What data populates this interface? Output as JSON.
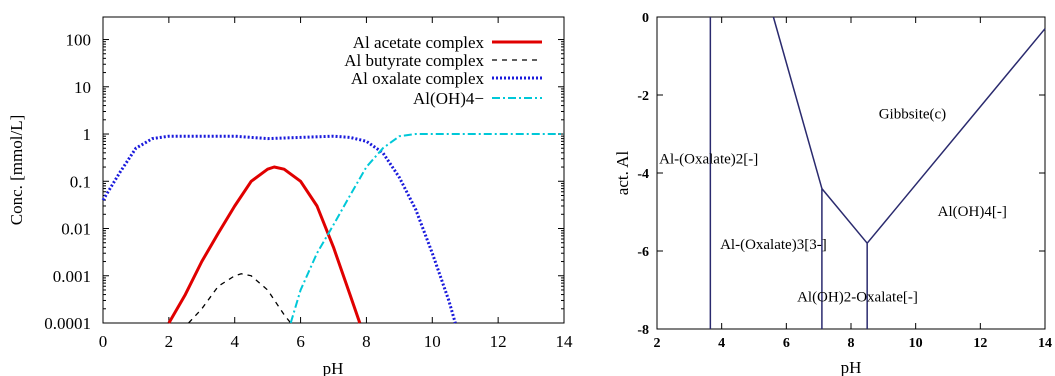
{
  "chart_data": [
    {
      "type": "line",
      "xlabel": "pH",
      "ylabel": "Conc. [mmol/L]",
      "xlim": [
        0,
        14
      ],
      "ylim": [
        0.0001,
        300
      ],
      "yscale": "log",
      "xticks": [
        "0",
        "2",
        "4",
        "6",
        "8",
        "10",
        "12",
        "14"
      ],
      "yticks": [
        "0.0001",
        "0.001",
        "0.01",
        "0.1",
        "1",
        "10",
        "100"
      ],
      "legend_position": "top-right",
      "grid": false,
      "series": [
        {
          "name": "Al acetate complex",
          "color": "#e00000",
          "style": "solid",
          "x": [
            2.0,
            2.5,
            3.0,
            3.5,
            4.0,
            4.5,
            5.0,
            5.2,
            5.5,
            6.0,
            6.5,
            7.0,
            7.5,
            7.8
          ],
          "y": [
            0.0001,
            0.0004,
            0.002,
            0.008,
            0.03,
            0.1,
            0.18,
            0.2,
            0.18,
            0.1,
            0.03,
            0.004,
            0.0004,
            0.0001
          ]
        },
        {
          "name": "Al butyrate complex",
          "color": "#000000",
          "style": "dashed",
          "x": [
            2.6,
            3.0,
            3.5,
            4.0,
            4.2,
            4.5,
            5.0,
            5.5,
            5.7
          ],
          "y": [
            0.0001,
            0.0002,
            0.0006,
            0.001,
            0.0011,
            0.001,
            0.0005,
            0.00015,
            0.0001
          ]
        },
        {
          "name": "Al oxalate complex",
          "color": "#1a1adc",
          "style": "dotted",
          "x": [
            0.0,
            0.5,
            1.0,
            1.5,
            2.0,
            3.0,
            4.0,
            5.0,
            6.0,
            7.0,
            7.5,
            8.0,
            8.5,
            9.0,
            9.5,
            10.0,
            10.5,
            10.7
          ],
          "y": [
            0.04,
            0.15,
            0.5,
            0.8,
            0.9,
            0.9,
            0.9,
            0.8,
            0.85,
            0.9,
            0.85,
            0.7,
            0.4,
            0.12,
            0.025,
            0.003,
            0.0003,
            0.0001
          ]
        },
        {
          "name": "Al(OH)4−",
          "color": "#00c8d8",
          "style": "dashdot",
          "x": [
            5.7,
            6.0,
            6.5,
            7.0,
            7.5,
            8.0,
            8.5,
            9.0,
            9.5,
            10.0,
            11.0,
            12.0,
            13.0,
            14.0
          ],
          "y": [
            0.0001,
            0.0005,
            0.003,
            0.012,
            0.05,
            0.2,
            0.5,
            0.9,
            1.0,
            1.0,
            1.0,
            1.0,
            1.0,
            1.0
          ]
        }
      ]
    },
    {
      "type": "diagram",
      "xlabel": "pH",
      "ylabel": "act. Al",
      "xlim": [
        2,
        14
      ],
      "ylim": [
        -8,
        0
      ],
      "xticks": [
        "2",
        "4",
        "6",
        "8",
        "10",
        "12",
        "14"
      ],
      "yticks": [
        "0",
        "-2",
        "-4",
        "-6",
        "-8"
      ],
      "line_color": "#2a2a6e",
      "boundaries": [
        {
          "x": [
            3.65,
            3.65
          ],
          "y": [
            -8,
            0
          ]
        },
        {
          "x": [
            5.6,
            7.1
          ],
          "y": [
            0,
            -4.4
          ]
        },
        {
          "x": [
            7.1,
            8.5
          ],
          "y": [
            -4.4,
            -5.8
          ]
        },
        {
          "x": [
            8.5,
            14.0
          ],
          "y": [
            -5.8,
            -0.3
          ]
        },
        {
          "x": [
            7.1,
            7.1
          ],
          "y": [
            -4.4,
            -8
          ]
        },
        {
          "x": [
            8.5,
            8.5
          ],
          "y": [
            -5.8,
            -8
          ]
        }
      ],
      "regions": [
        {
          "label": "Gibbsite(c)",
          "x": 9.9,
          "y": -2.6
        },
        {
          "label": "Al-(Oxalate)2[-]",
          "x": 3.6,
          "y": -3.75
        },
        {
          "label": "Al-(Oxalate)3[3-]",
          "x": 5.6,
          "y": -5.95
        },
        {
          "label": "Al(OH)4[-]",
          "x": 11.75,
          "y": -5.1
        },
        {
          "label": "Al(OH)2-Oxalate[-]",
          "x": 8.2,
          "y": -7.3
        }
      ]
    }
  ]
}
